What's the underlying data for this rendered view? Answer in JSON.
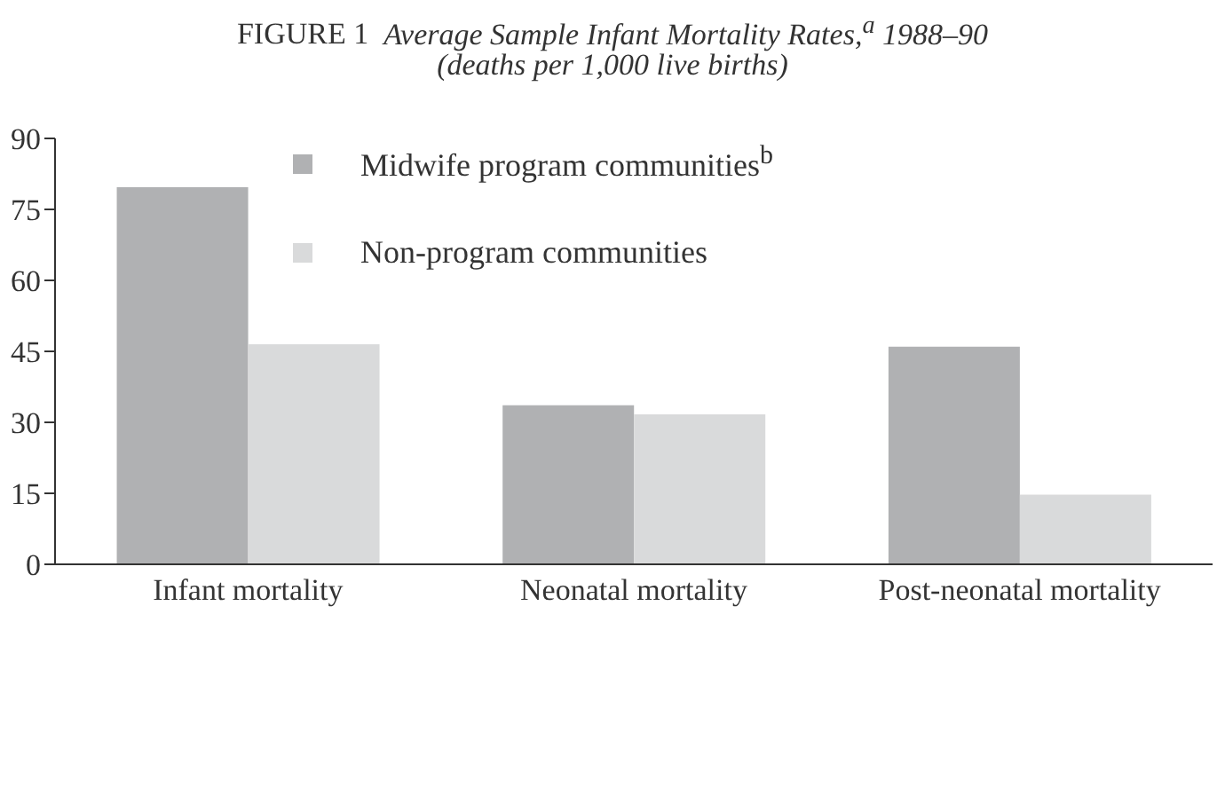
{
  "chart_data": {
    "type": "bar",
    "title": "FIGURE 1  Average Sample Infant Mortality Rates,$^{a}$ 1988–90",
    "subtitle": "(deaths per 1,000 live births)",
    "categories": [
      "Infant mortality",
      "Neonatal mortality",
      "Post-neonatal mortality"
    ],
    "series": [
      {
        "name": "Midwife program communities$^{b}$",
        "color": "#b0b1b3",
        "values": [
          79.7,
          33.6,
          46.0
        ]
      },
      {
        "name": "Non-program communities",
        "color": "#d9dadb",
        "values": [
          46.5,
          31.7,
          14.7
        ]
      }
    ],
    "ylim": [
      0,
      90
    ],
    "yticks": [
      0,
      15,
      30,
      45,
      60,
      75,
      90
    ],
    "grid": false,
    "legend": "top"
  }
}
